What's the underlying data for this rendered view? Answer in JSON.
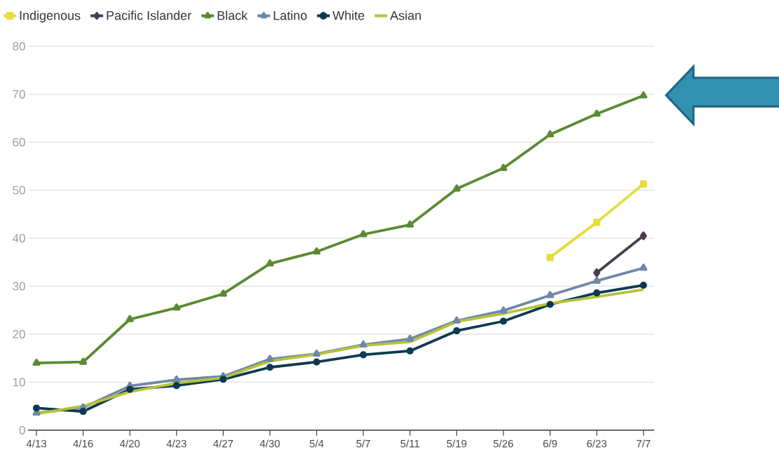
{
  "chart_data": {
    "type": "line",
    "categories": [
      "4/13",
      "4/16",
      "4/20",
      "4/23",
      "4/27",
      "4/30",
      "5/4",
      "5/7",
      "5/11",
      "5/19",
      "5/26",
      "6/9",
      "6/23",
      "7/7"
    ],
    "series": [
      {
        "name": "Indigenous",
        "color": "#e5dd3c",
        "marker": "square",
        "values": [
          null,
          null,
          null,
          null,
          null,
          null,
          null,
          null,
          null,
          null,
          null,
          36.0,
          43.3,
          51.3
        ]
      },
      {
        "name": "Pacific Islander",
        "color": "#4a3c52",
        "marker": "diamond",
        "values": [
          null,
          null,
          null,
          null,
          null,
          null,
          null,
          null,
          null,
          null,
          null,
          null,
          32.8,
          40.5
        ]
      },
      {
        "name": "Black",
        "color": "#5a8a32",
        "marker": "triangle",
        "values": [
          14.0,
          14.2,
          23.1,
          25.5,
          28.4,
          34.7,
          37.2,
          40.8,
          42.8,
          50.3,
          54.6,
          61.6,
          65.9,
          69.7
        ]
      },
      {
        "name": "Latino",
        "color": "#7088a8",
        "marker": "triangle",
        "values": [
          3.6,
          4.7,
          9.2,
          10.5,
          11.2,
          14.8,
          15.9,
          17.8,
          19.0,
          22.8,
          24.9,
          28.1,
          31.1,
          33.8
        ]
      },
      {
        "name": "White",
        "color": "#0d3a50",
        "marker": "circle",
        "values": [
          4.6,
          3.9,
          8.5,
          9.3,
          10.6,
          13.1,
          14.2,
          15.7,
          16.5,
          20.7,
          22.7,
          26.2,
          28.6,
          30.2
        ]
      },
      {
        "name": "Asian",
        "color": "#b5c337",
        "marker": "none",
        "values": [
          3.4,
          5.0,
          8.0,
          9.8,
          10.9,
          14.4,
          15.8,
          17.6,
          18.4,
          22.6,
          24.3,
          26.4,
          27.8,
          29.3
        ]
      }
    ],
    "ylim": [
      0,
      80
    ],
    "yticks": [
      0,
      10,
      20,
      30,
      40,
      50,
      60,
      70,
      80
    ],
    "grid": "y",
    "legend": "top left",
    "line_style": "solid"
  }
}
